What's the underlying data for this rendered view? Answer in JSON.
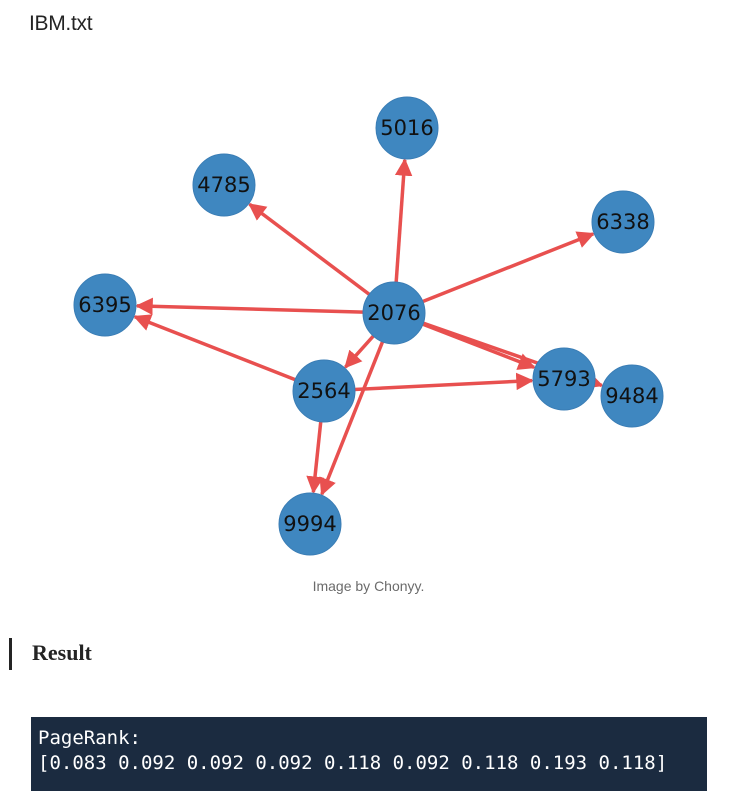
{
  "page": {
    "file_title": "IBM.txt",
    "caption": "Image by Chonyy.",
    "section_heading": "Result"
  },
  "graph": {
    "node_color": "#3f87c0",
    "edge_color": "#e8504f",
    "nodes": [
      {
        "id": "2076",
        "label": "2076"
      },
      {
        "id": "5016",
        "label": "5016"
      },
      {
        "id": "4785",
        "label": "4785"
      },
      {
        "id": "6338",
        "label": "6338"
      },
      {
        "id": "6395",
        "label": "6395"
      },
      {
        "id": "2564",
        "label": "2564"
      },
      {
        "id": "5793",
        "label": "5793"
      },
      {
        "id": "9484",
        "label": "9484"
      },
      {
        "id": "9994",
        "label": "9994"
      }
    ],
    "edges": [
      {
        "from": "2076",
        "to": "5016"
      },
      {
        "from": "2076",
        "to": "4785"
      },
      {
        "from": "2076",
        "to": "6338"
      },
      {
        "from": "2076",
        "to": "6395"
      },
      {
        "from": "2076",
        "to": "2564"
      },
      {
        "from": "2076",
        "to": "5793"
      },
      {
        "from": "2076",
        "to": "9484"
      },
      {
        "from": "2076",
        "to": "9994"
      },
      {
        "from": "2564",
        "to": "6395"
      },
      {
        "from": "2564",
        "to": "5793"
      },
      {
        "from": "2564",
        "to": "9994"
      }
    ]
  },
  "result": {
    "label": "PageRank:",
    "values_text": "[0.083 0.092 0.092 0.092 0.118 0.092 0.118 0.193 0.118]"
  }
}
